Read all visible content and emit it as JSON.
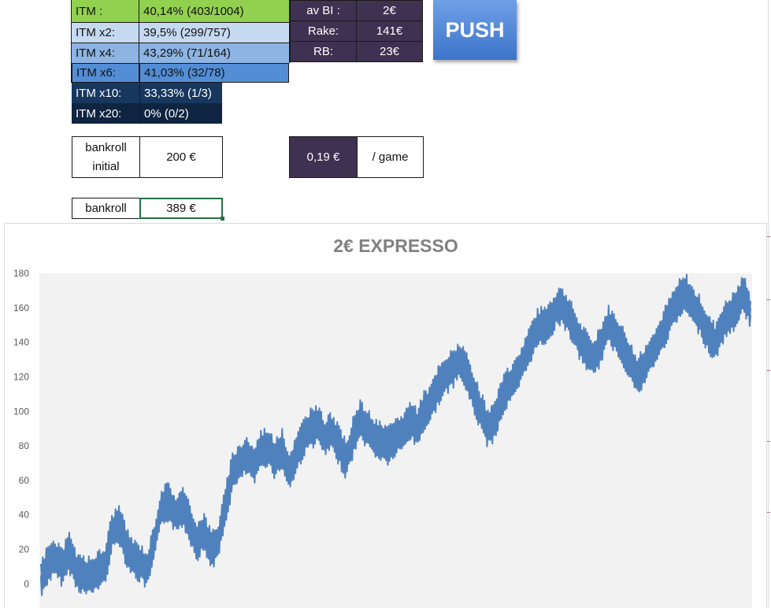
{
  "itm_table": [
    {
      "label": "ITM :",
      "value": "40,14% (403/1004)"
    },
    {
      "label": "ITM x2:",
      "value": "39,5% (299/757)"
    },
    {
      "label": "ITM x4:",
      "value": "43,29% (71/164)"
    },
    {
      "label": "ITM x6:",
      "value": "41,03% (32/78)"
    },
    {
      "label": "ITM x10:",
      "value": "33,33% (1/3)"
    },
    {
      "label": "ITM x20:",
      "value": "0% (0/2)"
    }
  ],
  "stats": [
    {
      "label": "av BI :",
      "value": "2€"
    },
    {
      "label": "Rake:",
      "value": "141€"
    },
    {
      "label": "RB:",
      "value": "23€"
    }
  ],
  "push_button": "PUSH",
  "bankroll_initial": {
    "label": "bankroll initial",
    "value": "200 €"
  },
  "per_game": {
    "value": "0,19 €",
    "unit": "/ game"
  },
  "bankroll": {
    "label": "bankroll",
    "value": "389 €"
  },
  "colors": {
    "line": "#4f81bd",
    "plot_bg": "#f2f2f2",
    "itm_green": "#92d050",
    "stats_purple": "#3f3151",
    "push_blue": "#4a82d6"
  },
  "chart_data": {
    "type": "line",
    "title": "2€ EXPRESSO",
    "xlabel": "",
    "ylabel": "",
    "ylim": [
      -14,
      180
    ],
    "yticks": [
      "0",
      "20",
      "40",
      "60",
      "80",
      "100",
      "120",
      "140",
      "160",
      "180"
    ],
    "grid": false,
    "series": [
      {
        "x": [
          0,
          10,
          20,
          30,
          40,
          50,
          60,
          70,
          80,
          90,
          100,
          110,
          120,
          130,
          140,
          150,
          160,
          170,
          180,
          190,
          200,
          210,
          220,
          230,
          240,
          250,
          260,
          270,
          280,
          290,
          300,
          310,
          320,
          330,
          340,
          350,
          360,
          370,
          380,
          390,
          400,
          410,
          420,
          430,
          440,
          450,
          460,
          470,
          480,
          490,
          500,
          510,
          520,
          530,
          540,
          550,
          560,
          570,
          580,
          590,
          600,
          610,
          620,
          630,
          640,
          650,
          660,
          670,
          680,
          690,
          700,
          710,
          720,
          730,
          740,
          750,
          760,
          770,
          780,
          790,
          800,
          810,
          820,
          830,
          840,
          850,
          860,
          870,
          880,
          890,
          900,
          910,
          920,
          930,
          940,
          950,
          960,
          970,
          980,
          990,
          1000
        ],
        "values": [
          2,
          12,
          15,
          10,
          18,
          8,
          5,
          4,
          8,
          10,
          30,
          35,
          22,
          15,
          12,
          8,
          25,
          45,
          48,
          40,
          45,
          35,
          25,
          30,
          20,
          25,
          45,
          65,
          70,
          75,
          68,
          78,
          80,
          72,
          78,
          65,
          75,
          85,
          90,
          92,
          85,
          88,
          80,
          72,
          85,
          95,
          90,
          85,
          82,
          80,
          85,
          88,
          95,
          90,
          100,
          105,
          115,
          120,
          125,
          130,
          122,
          110,
          100,
          90,
          95,
          108,
          115,
          120,
          130,
          140,
          148,
          150,
          155,
          162,
          158,
          150,
          140,
          135,
          130,
          140,
          150,
          145,
          138,
          130,
          120,
          125,
          135,
          140,
          150,
          158,
          165,
          168,
          160,
          155,
          145,
          140,
          150,
          155,
          160,
          168,
          160
        ]
      }
    ]
  }
}
